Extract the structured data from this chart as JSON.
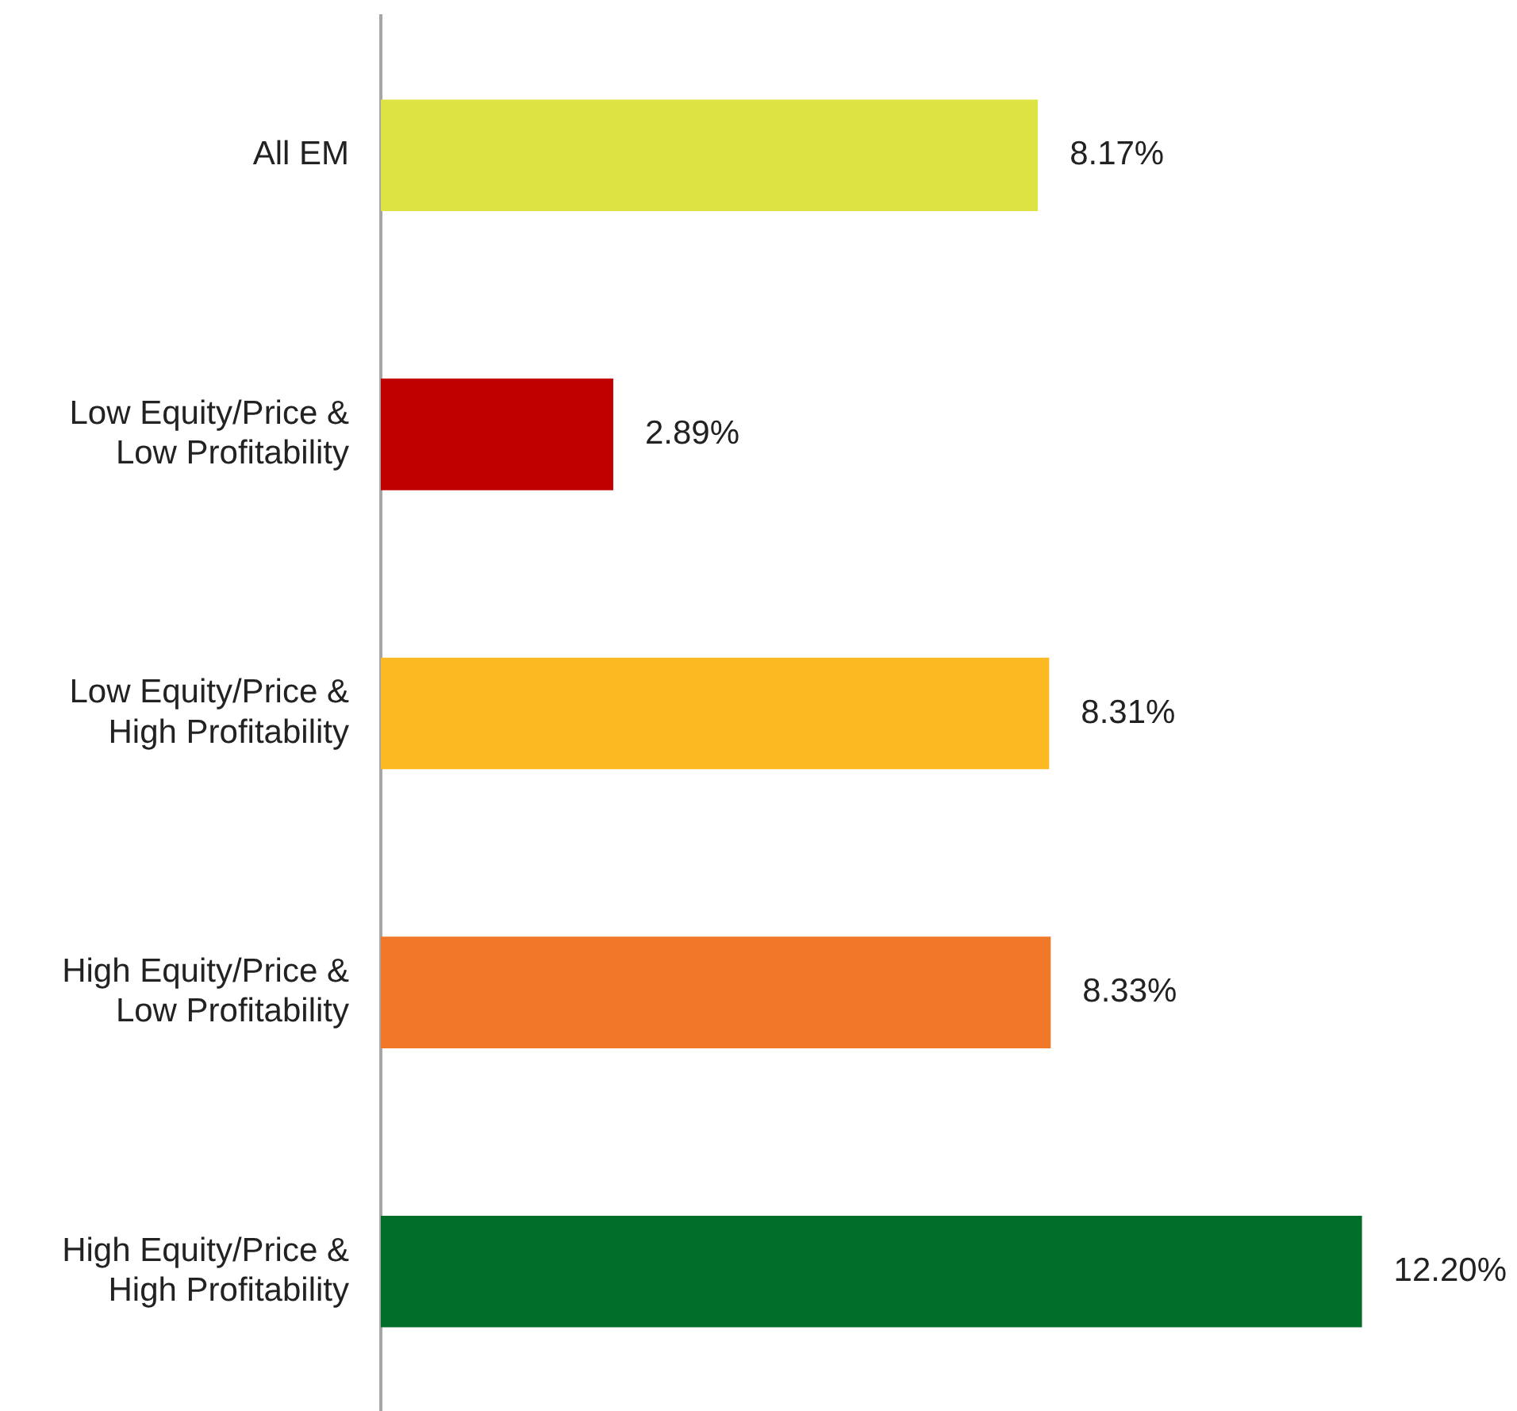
{
  "chart_data": {
    "type": "bar",
    "orientation": "horizontal",
    "categories": [
      "All EM",
      "Low Equity/Price & Low Profitability",
      "Low Equity/Price & High Profitability",
      "High Equity/Price & Low Profitability",
      "High Equity/Price & High Profitability"
    ],
    "values": [
      8.17,
      2.89,
      8.31,
      8.33,
      12.2
    ],
    "value_labels": [
      "8.17%",
      "2.89%",
      "8.31%",
      "8.33%",
      "12.20%"
    ],
    "colors": [
      "#dce343",
      "#c00000",
      "#fdb922",
      "#f07828",
      "#006e28"
    ],
    "grid": false,
    "legend": false
  }
}
